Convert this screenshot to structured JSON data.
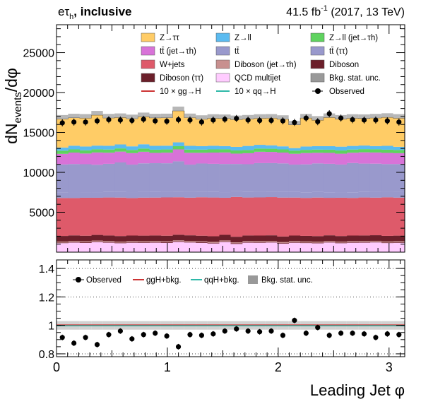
{
  "header": {
    "channel": "eτ",
    "channel_sub": "h",
    "category": ", inclusive",
    "lumi_main": "41.5 fb",
    "lumi_exp": "-1",
    "lumi_tail": " (2017, 13 TeV)"
  },
  "axes": {
    "ylabel_main": "dN",
    "ylabel_sub": "events",
    "ylabel_tail": "/dφ",
    "xlabel": "Leading Jet  φ",
    "top_yticks": [
      "5000",
      "10000",
      "15000",
      "20000",
      "25000"
    ],
    "bottom_yticks": [
      "0.8",
      "1",
      "1.2",
      "1.4"
    ],
    "xticks": [
      "0",
      "1",
      "2",
      "3"
    ]
  },
  "legend_top": [
    {
      "label": "Z→ττ",
      "color": "#ffcc66",
      "kind": "box"
    },
    {
      "label": "Z→ll",
      "color": "#5bbbf0",
      "kind": "box"
    },
    {
      "label": "Z→ll (jet→τh)",
      "color": "#5fd35f",
      "kind": "box"
    },
    {
      "label": "tt̄ (jet→τh)",
      "color": "#d873d8",
      "kind": "box"
    },
    {
      "label": "tt̄",
      "color": "#9999cc",
      "kind": "box"
    },
    {
      "label": "tt̄ (ττ)",
      "color": "#9999cc",
      "kind": "box"
    },
    {
      "label": "W+jets",
      "color": "#de5a6a",
      "kind": "box"
    },
    {
      "label": "Diboson (jet→τh)",
      "color": "#c8908f",
      "kind": "box"
    },
    {
      "label": "Diboson",
      "color": "#6b1f2a",
      "kind": "box"
    },
    {
      "label": "Diboson (ττ)",
      "color": "#6b1f2a",
      "kind": "box"
    },
    {
      "label": "QCD multijet",
      "color": "#ffccff",
      "kind": "box"
    },
    {
      "label": "Bkg. stat. unc.",
      "color": "#999999",
      "kind": "box"
    },
    {
      "label": "10 × gg→H",
      "color": "#cc3333",
      "kind": "line"
    },
    {
      "label": "10 × qq→H",
      "color": "#2eb8a8",
      "kind": "line"
    },
    {
      "label": "Observed",
      "color": "#000000",
      "kind": "marker"
    }
  ],
  "legend_bottom": [
    {
      "label": "Observed",
      "color": "#000000",
      "kind": "marker"
    },
    {
      "label": "ggH+bkg.",
      "color": "#cc3333",
      "kind": "line"
    },
    {
      "label": "qqH+bkg.",
      "color": "#2eb8a8",
      "kind": "line"
    },
    {
      "label": "Bkg. stat. unc.",
      "color": "#999999",
      "kind": "box"
    }
  ],
  "chart_data": {
    "type": "area",
    "x_range": [
      0,
      3.14159
    ],
    "n_bins": 30,
    "top_ylim": [
      0,
      28500
    ],
    "ratio_ylim": [
      0.78,
      1.46
    ],
    "stack_order_bottom_to_top": [
      "QCD multijet",
      "Diboson (ττ)",
      "Diboson (jet→τh)",
      "Diboson",
      "W+jets",
      "tt̄ (ττ)",
      "tt̄",
      "tt̄ (jet→τh)",
      "Z→ll (jet→τh)",
      "Z→ll",
      "Z→ττ"
    ],
    "series": [
      {
        "name": "QCD multijet",
        "color": "#ffccff",
        "values": [
          1130,
          1200,
          1160,
          1260,
          1190,
          1120,
          1180,
          1170,
          1190,
          1160,
          1280,
          1210,
          1160,
          1090,
          1270,
          1030,
          1190,
          1180,
          1210,
          1060,
          1180,
          1140,
          1110,
          1210,
          1120,
          1180,
          1190,
          1220,
          1140,
          1170
        ]
      },
      {
        "name": "Diboson (ττ)",
        "color": "#6b1f2a",
        "values": [
          80,
          80,
          80,
          80,
          80,
          80,
          80,
          80,
          80,
          80,
          80,
          80,
          80,
          80,
          80,
          80,
          80,
          80,
          80,
          80,
          80,
          80,
          80,
          80,
          80,
          80,
          80,
          80,
          80,
          80
        ]
      },
      {
        "name": "Diboson (jet→τh)",
        "color": "#c8908f",
        "values": [
          120,
          120,
          120,
          120,
          120,
          120,
          120,
          120,
          120,
          120,
          120,
          120,
          120,
          120,
          120,
          120,
          120,
          120,
          120,
          120,
          120,
          120,
          120,
          120,
          120,
          120,
          120,
          120,
          120,
          120
        ]
      },
      {
        "name": "Diboson",
        "color": "#6b1f2a",
        "values": [
          700,
          700,
          700,
          700,
          700,
          700,
          700,
          700,
          700,
          700,
          700,
          700,
          700,
          700,
          700,
          700,
          700,
          700,
          700,
          700,
          700,
          700,
          700,
          700,
          700,
          700,
          700,
          700,
          700,
          700
        ]
      },
      {
        "name": "W+jets",
        "color": "#de5a6a",
        "values": [
          4760,
          4680,
          4760,
          4660,
          4760,
          4820,
          4700,
          4760,
          4750,
          4800,
          4700,
          4720,
          4820,
          4860,
          4650,
          4990,
          4760,
          4780,
          4790,
          4880,
          4760,
          4760,
          4830,
          4700,
          4800,
          4720,
          4760,
          4710,
          4830,
          4760
        ]
      },
      {
        "name": "tt̄ (ττ)",
        "color": "#9999cc",
        "values": [
          700,
          700,
          700,
          700,
          700,
          700,
          700,
          700,
          700,
          700,
          700,
          700,
          700,
          700,
          700,
          700,
          700,
          700,
          700,
          700,
          700,
          700,
          700,
          700,
          700,
          700,
          700,
          700,
          700,
          700
        ]
      },
      {
        "name": "tt̄",
        "color": "#9999cc",
        "values": [
          3500,
          3560,
          3500,
          3430,
          3520,
          3700,
          3490,
          3600,
          3610,
          3580,
          3800,
          3440,
          3530,
          3520,
          3530,
          3430,
          3470,
          3600,
          3560,
          3580,
          3430,
          3500,
          3580,
          3560,
          3460,
          3670,
          3550,
          3560,
          3470,
          3510
        ]
      },
      {
        "name": "tt̄ (jet→τh)",
        "color": "#d873d8",
        "values": [
          1330,
          1440,
          1340,
          1540,
          1390,
          1360,
          1440,
          1450,
          1290,
          1330,
          1500,
          1480,
          1340,
          1410,
          1440,
          1300,
          1380,
          1420,
          1400,
          1360,
          1360,
          1420,
          1330,
          1370,
          1360,
          1290,
          1410,
          1400,
          1400,
          1360
        ]
      },
      {
        "name": "Z→ll (jet→τh)",
        "color": "#5fd35f",
        "values": [
          400,
          400,
          400,
          400,
          400,
          400,
          400,
          400,
          400,
          400,
          400,
          400,
          400,
          400,
          400,
          400,
          400,
          400,
          400,
          400,
          400,
          400,
          400,
          400,
          400,
          400,
          400,
          400,
          400,
          400
        ]
      },
      {
        "name": "Z→ll",
        "color": "#5bbbf0",
        "values": [
          390,
          460,
          480,
          460,
          470,
          500,
          450,
          540,
          480,
          470,
          480,
          470,
          430,
          450,
          400,
          440,
          510,
          470,
          430,
          380,
          310,
          420,
          430,
          440,
          480,
          450,
          450,
          400,
          480,
          400
        ]
      },
      {
        "name": "Z→ττ",
        "color": "#ffcc66",
        "values": [
          3570,
          3500,
          3560,
          3830,
          3490,
          3380,
          3470,
          3460,
          3510,
          3510,
          3950,
          3540,
          3370,
          3450,
          3460,
          3430,
          3380,
          3330,
          3410,
          3390,
          2930,
          3570,
          3270,
          3600,
          3460,
          3470,
          3400,
          3530,
          3580,
          3590
        ]
      }
    ],
    "stat_unc_band": [
      1.03,
      1.03,
      1.03,
      1.03,
      1.03,
      1.03,
      1.03,
      1.03,
      1.03,
      1.03,
      1.03,
      1.03,
      1.03,
      1.03,
      1.03,
      1.03,
      1.03,
      1.03,
      1.03,
      1.03,
      1.03,
      1.03,
      1.03,
      1.03,
      1.03,
      1.03,
      1.03,
      1.03,
      1.03,
      1.03
    ],
    "observed": [
      16200,
      16300,
      16300,
      16450,
      16600,
      16550,
      16500,
      16650,
      16450,
      16400,
      16600,
      16550,
      16300,
      16550,
      16650,
      16750,
      16550,
      16500,
      16500,
      16450,
      16250,
      16800,
      16350,
      17350,
      16800,
      16600,
      16550,
      16550,
      16450,
      16300
    ],
    "ratio_observed": [
      0.915,
      0.875,
      0.915,
      0.865,
      0.935,
      0.96,
      0.905,
      0.935,
      0.945,
      0.925,
      0.85,
      0.935,
      0.93,
      0.94,
      0.96,
      0.975,
      0.96,
      0.955,
      0.96,
      0.93,
      1.035,
      0.945,
      0.985,
      0.93,
      0.945,
      0.945,
      0.94,
      0.915,
      0.94,
      0.935
    ]
  }
}
